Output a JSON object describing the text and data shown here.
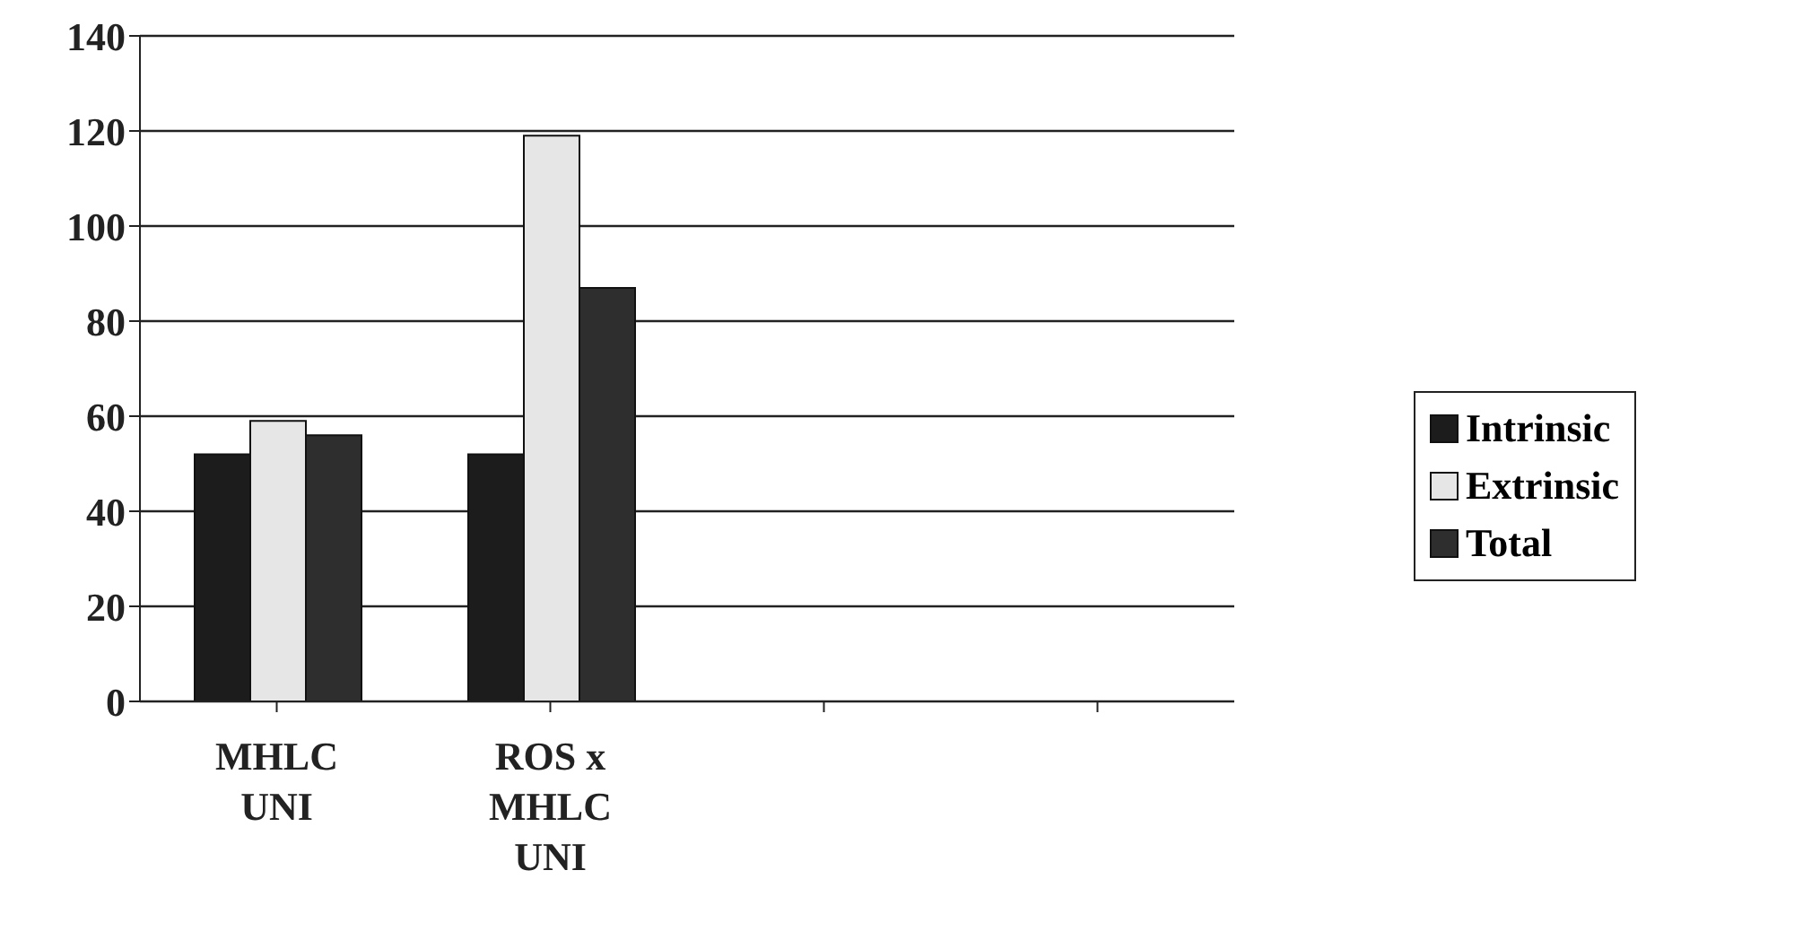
{
  "chart_data": {
    "type": "bar",
    "categories": [
      "MHLC UNI",
      "ROS x MHLC UNI",
      null,
      null
    ],
    "series": [
      {
        "name": "Intrinsic",
        "color": "#1c1c1c",
        "values": [
          52,
          52,
          null,
          null
        ]
      },
      {
        "name": "Extrinsic",
        "color": "#e6e6e6",
        "values": [
          59,
          119,
          null,
          null
        ]
      },
      {
        "name": "Total",
        "color": "#2e2e2e",
        "values": [
          56,
          87,
          null,
          null
        ]
      }
    ],
    "ylim": [
      0,
      140
    ],
    "yticks": [
      0,
      20,
      40,
      60,
      80,
      100,
      120,
      140
    ],
    "grid": "y",
    "legend": "right"
  }
}
